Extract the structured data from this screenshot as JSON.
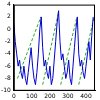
{
  "chart_data": {
    "type": "line",
    "x": [
      0,
      8,
      16,
      24,
      32,
      40,
      48,
      56,
      64,
      72,
      80,
      88,
      96,
      104,
      112,
      120,
      128,
      136,
      144,
      152,
      160,
      168,
      176,
      184,
      192,
      200,
      208,
      216,
      224,
      232,
      240,
      248,
      256,
      264,
      272,
      280,
      288,
      296,
      304,
      312,
      320,
      328,
      336,
      344,
      352,
      360,
      368,
      376,
      384,
      392,
      400,
      408,
      416,
      424,
      432,
      440
    ],
    "series": [
      {
        "color": "#0000cc",
        "line_style": "solid",
        "marker": "none",
        "values": [
          1,
          -2,
          -4,
          -6,
          -5,
          -7,
          -8,
          -6,
          -8,
          -9,
          -7,
          -5,
          -3,
          -6,
          -8,
          -9,
          -7,
          -4,
          0,
          2,
          -3,
          -6,
          -5,
          -7,
          -8,
          -6,
          -9,
          -8,
          -5,
          -2,
          1,
          3,
          -2,
          -5,
          -4,
          -6,
          -8,
          -7,
          -5,
          -8,
          -9,
          -6,
          -3,
          0,
          2,
          -4,
          -6,
          -5,
          -7,
          -8,
          -6,
          -4,
          -2,
          -5,
          -1,
          2
        ]
      },
      {
        "color": "#22aa22",
        "line_style": "dashed",
        "marker": "none",
        "x": [
          20,
          150,
          155,
          160,
          250,
          255,
          260,
          350,
          355,
          360,
          445
        ],
        "values": [
          -8,
          2,
          null,
          -9,
          3,
          null,
          -9,
          2,
          null,
          -9,
          2
        ]
      }
    ],
    "xlim": [
      0,
      450
    ],
    "xticks": [
      0,
      100,
      200,
      300,
      400
    ],
    "ylim": [
      -10,
      4
    ],
    "yticks": [
      -10,
      -8,
      -6,
      -4,
      -2,
      0,
      2,
      4
    ],
    "grid": false
  }
}
